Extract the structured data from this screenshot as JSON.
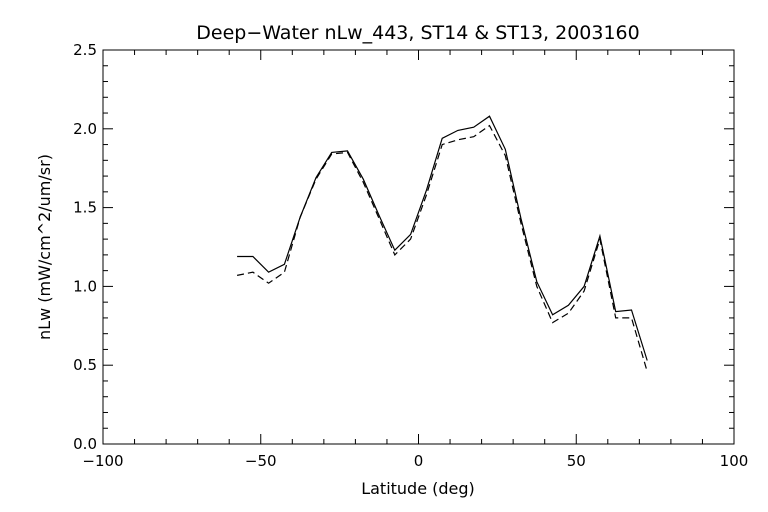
{
  "chart_data": {
    "type": "line",
    "title": "Deep−Water nLw_443, ST14 & ST13, 2003160",
    "xlabel": "Latitude (deg)",
    "ylabel": "nLw (mW/cm^2/um/sr)",
    "xlim": [
      -100,
      100
    ],
    "ylim": [
      0.0,
      2.5
    ],
    "xticks": [
      -100,
      -50,
      0,
      50,
      100
    ],
    "xtick_labels": [
      "−100",
      "−50",
      "0",
      "50",
      "100"
    ],
    "yticks": [
      0.0,
      0.5,
      1.0,
      1.5,
      2.0,
      2.5
    ],
    "ytick_labels": [
      "0.0",
      "0.5",
      "1.0",
      "1.5",
      "2.0",
      "2.5"
    ],
    "grid": false,
    "legend": "none",
    "series": [
      {
        "style": "solid",
        "color": "#000000",
        "x": [
          -57.5,
          -52.5,
          -47.5,
          -42.5,
          -37.5,
          -32.5,
          -27.5,
          -22.5,
          -17.5,
          -12.5,
          -7.5,
          -2.5,
          2.5,
          7.5,
          12.5,
          17.5,
          22.5,
          27.5,
          32.5,
          37.5,
          42.5,
          47.5,
          52.5,
          57.5,
          62.5,
          67.5,
          72.5
        ],
        "values": [
          1.19,
          1.19,
          1.09,
          1.14,
          1.44,
          1.69,
          1.85,
          1.86,
          1.68,
          1.45,
          1.23,
          1.33,
          1.61,
          1.94,
          1.99,
          2.01,
          2.08,
          1.87,
          1.43,
          1.03,
          0.82,
          0.88,
          1.0,
          1.32,
          0.84,
          0.85,
          0.53
        ]
      },
      {
        "style": "dashed",
        "color": "#000000",
        "x": [
          -57.5,
          -52.5,
          -47.5,
          -42.5,
          -37.5,
          -32.5,
          -27.5,
          -22.5,
          -17.5,
          -12.5,
          -7.5,
          -2.5,
          2.5,
          7.5,
          12.5,
          17.5,
          22.5,
          27.5,
          32.5,
          37.5,
          42.5,
          47.5,
          52.5,
          57.5,
          62.5,
          67.5,
          72.5
        ],
        "values": [
          1.07,
          1.09,
          1.02,
          1.09,
          1.44,
          1.68,
          1.84,
          1.85,
          1.66,
          1.43,
          1.2,
          1.3,
          1.58,
          1.9,
          1.93,
          1.95,
          2.02,
          1.83,
          1.4,
          1.0,
          0.77,
          0.83,
          0.97,
          1.3,
          0.8,
          0.8,
          0.46
        ]
      }
    ]
  }
}
